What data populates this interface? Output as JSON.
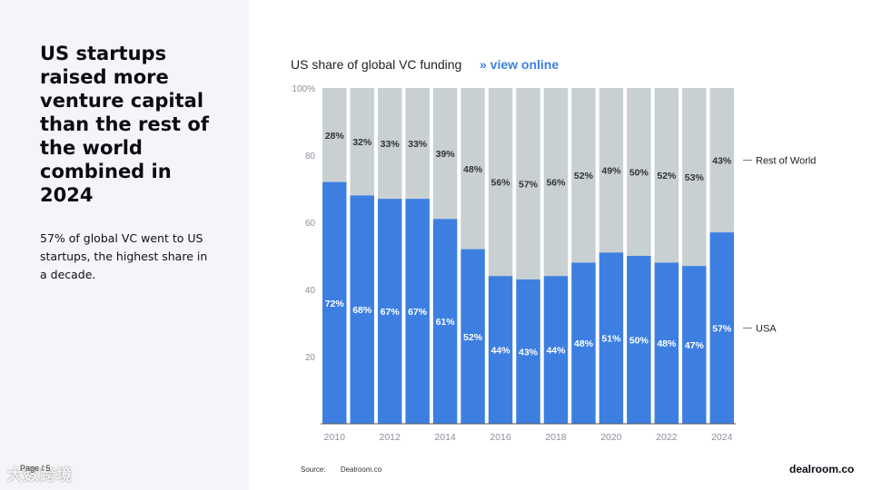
{
  "slide": {
    "headline": "US startups raised more venture capital than the rest of the world combined in 2024",
    "summary": "57% of global VC went to US startups, the highest share in a decade.",
    "page_label": "Page / 5",
    "watermark": "大数跨境",
    "source_label": "Source:",
    "source_value": "Dealroom.co",
    "brand": "dealroom.co",
    "view_online": "» view online"
  },
  "colors": {
    "usa": "#3d7fe0",
    "rest": "#c8d0d2",
    "left_panel": "#f4f5f8",
    "accent_link": "#3d7fe0"
  },
  "chart_data": {
    "type": "bar",
    "stacked": true,
    "title": "US share of global VC funding",
    "categories": [
      "2010",
      "2011",
      "2012",
      "2013",
      "2014",
      "2015",
      "2016",
      "2017",
      "2018",
      "2019",
      "2020",
      "2021",
      "2022",
      "2023",
      "2024"
    ],
    "x_tick_labels": [
      "2010",
      "2012",
      "2014",
      "2016",
      "2018",
      "2020",
      "2022",
      "2024"
    ],
    "y_tick_labels": [
      "100%",
      "80",
      "60",
      "40",
      "20"
    ],
    "ylim": [
      0,
      100
    ],
    "series": [
      {
        "name": "USA",
        "values": [
          72,
          68,
          67,
          67,
          61,
          52,
          44,
          43,
          44,
          48,
          51,
          50,
          48,
          47,
          57
        ]
      },
      {
        "name": "Rest of World",
        "values": [
          28,
          32,
          33,
          33,
          39,
          48,
          56,
          57,
          56,
          52,
          49,
          50,
          52,
          53,
          43
        ]
      }
    ],
    "legend": [
      {
        "label": "Rest of World",
        "placement": "right"
      },
      {
        "label": "USA",
        "placement": "right"
      }
    ],
    "value_suffix": "%"
  }
}
